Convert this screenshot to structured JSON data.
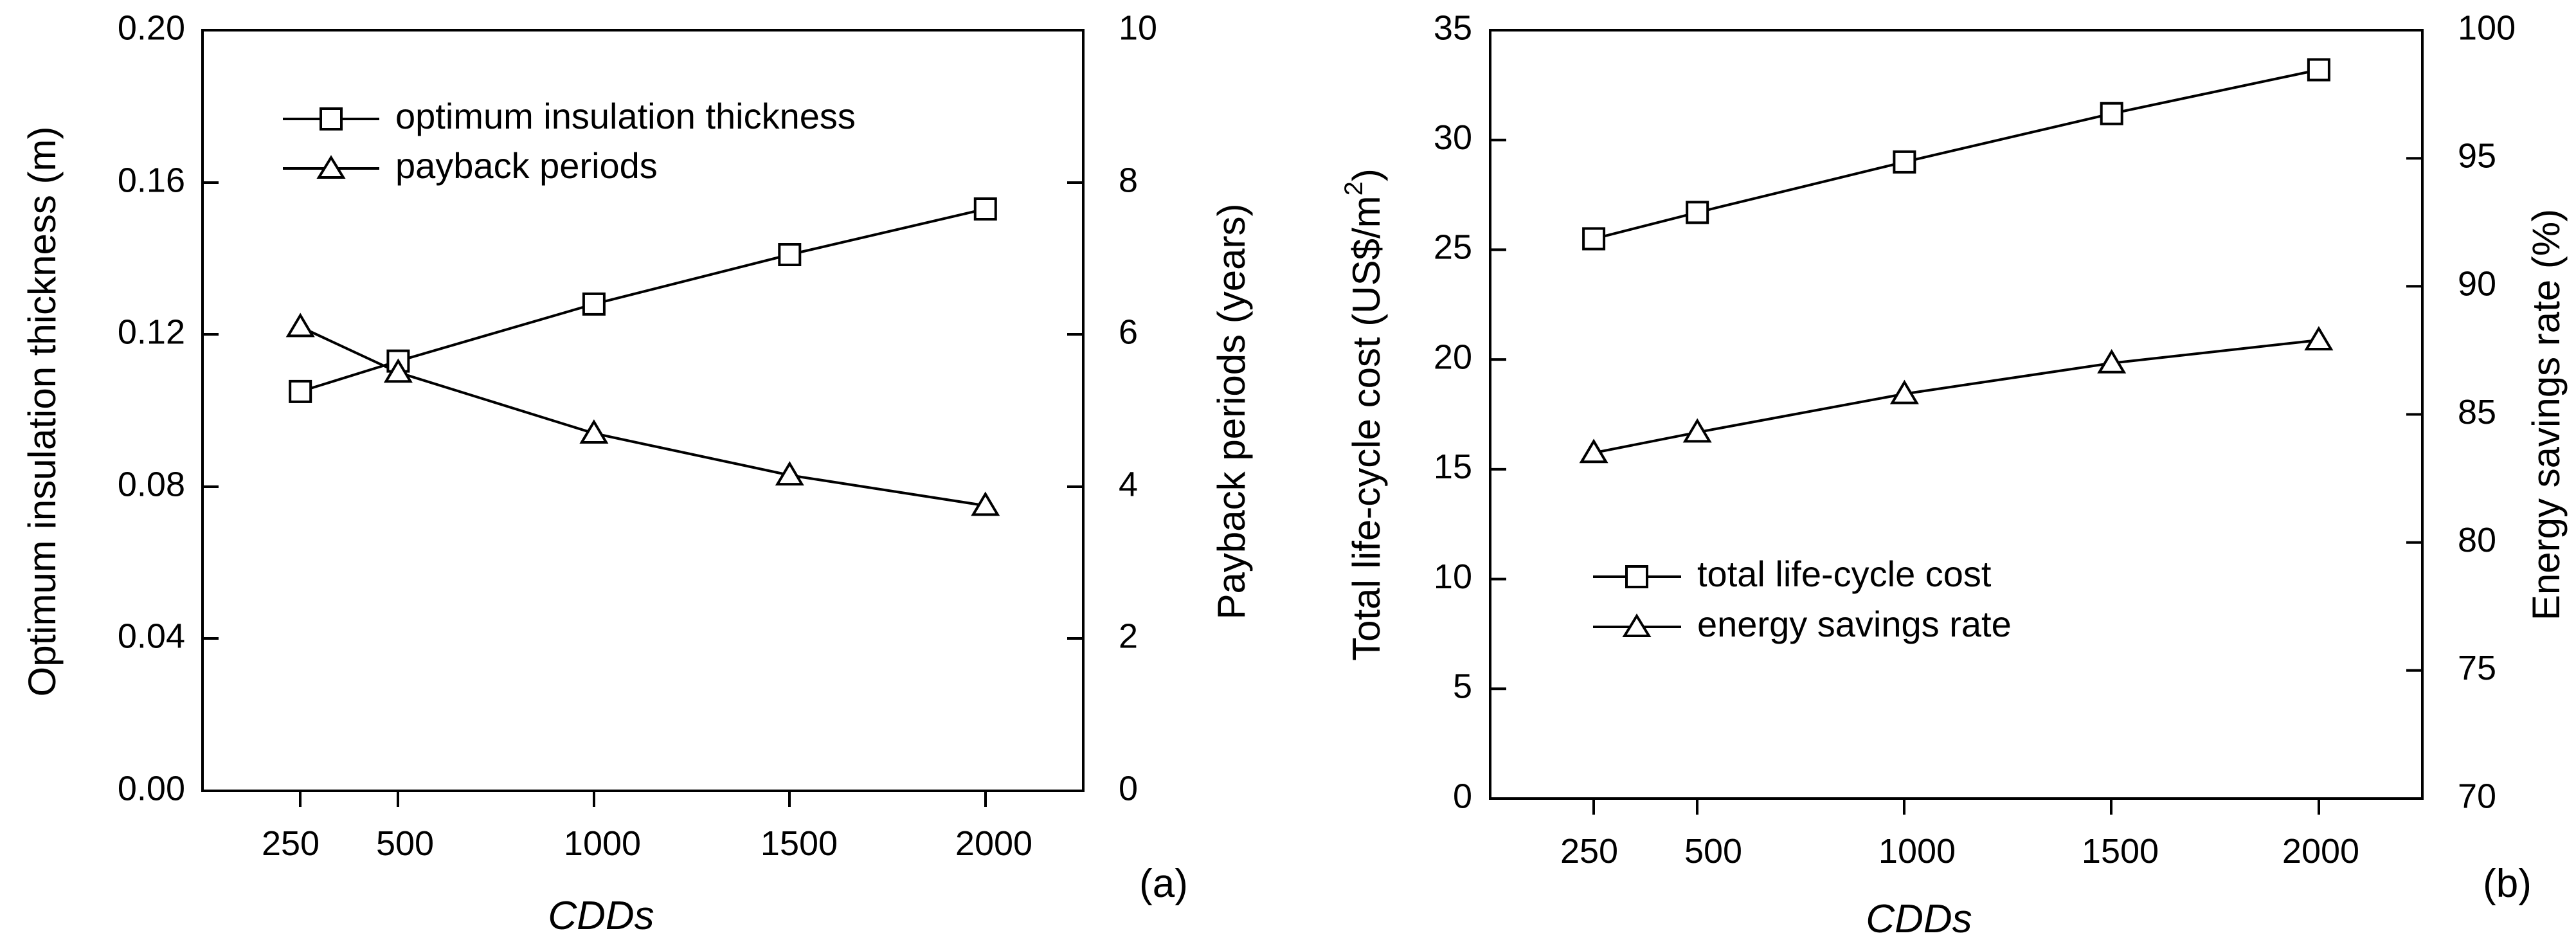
{
  "colors": {
    "line": "#000000",
    "background": "#ffffff"
  },
  "chart_data": [
    {
      "type": "line",
      "panel_label": "(a)",
      "xlabel": "CDDs",
      "categories": [
        "250",
        "500",
        "1000",
        "1500",
        "2000"
      ],
      "x": [
        250,
        500,
        1000,
        1500,
        2000
      ],
      "xlim": [
        0,
        2250
      ],
      "y_left": {
        "label": "Optimum insulation thickness (m)",
        "lim": [
          0,
          0.2
        ],
        "ticks": [
          "0.00",
          "0.04",
          "0.08",
          "0.12",
          "0.16",
          "0.20"
        ]
      },
      "y_right": {
        "label": "Payback periods (years)",
        "lim": [
          0,
          10
        ],
        "ticks": [
          "0",
          "2",
          "4",
          "6",
          "8",
          "10"
        ]
      },
      "series": [
        {
          "name": "optimum insulation thickness",
          "axis": "left",
          "marker": "square",
          "values": [
            0.105,
            0.113,
            0.128,
            0.141,
            0.153
          ]
        },
        {
          "name": "payback periods",
          "axis": "right",
          "marker": "triangle",
          "values": [
            6.1,
            5.5,
            4.7,
            4.15,
            3.75
          ]
        }
      ],
      "legend": {
        "placement": "top-center"
      }
    },
    {
      "type": "line",
      "panel_label": "(b)",
      "xlabel": "CDDs",
      "categories": [
        "250",
        "500",
        "1000",
        "1500",
        "2000"
      ],
      "x": [
        250,
        500,
        1000,
        1500,
        2000
      ],
      "xlim": [
        0,
        2250
      ],
      "y_left": {
        "label_prefix": "Total life-cycle cost (US$/m",
        "label_sup": "2",
        "label_suffix": ")",
        "lim": [
          0,
          35
        ],
        "ticks": [
          "0",
          "5",
          "10",
          "15",
          "20",
          "25",
          "30",
          "35"
        ]
      },
      "y_right": {
        "label": "Energy savings rate (%)",
        "lim": [
          70,
          100
        ],
        "ticks": [
          "70",
          "75",
          "80",
          "85",
          "90",
          "95",
          "100"
        ]
      },
      "series": [
        {
          "name": "total life-cycle cost",
          "axis": "left",
          "marker": "square",
          "values": [
            25.5,
            26.7,
            29.0,
            31.2,
            33.2
          ]
        },
        {
          "name": "energy savings rate",
          "axis": "right",
          "marker": "triangle",
          "values": [
            83.5,
            84.3,
            85.8,
            87.0,
            87.9
          ]
        }
      ],
      "legend": {
        "placement": "bottom-left"
      }
    }
  ]
}
